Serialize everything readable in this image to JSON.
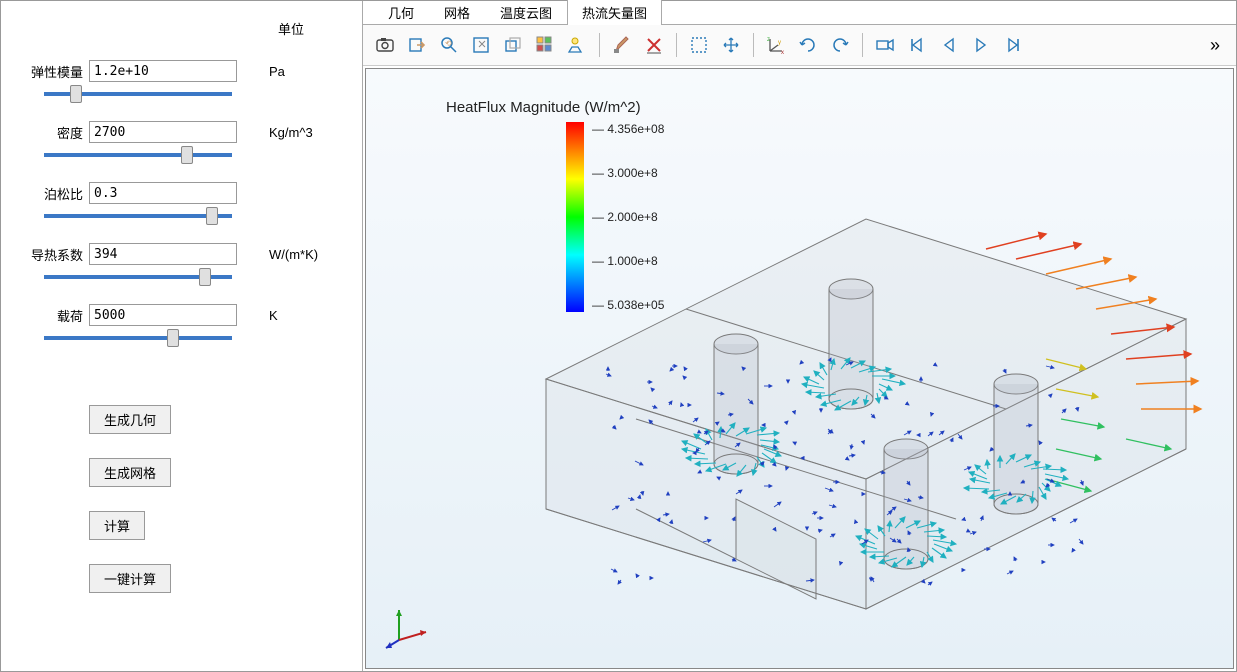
{
  "sidebar": {
    "unit_header": "单位",
    "params": [
      {
        "label": "弹性模量",
        "value": "1.2e+10",
        "unit": "Pa",
        "slider": 15
      },
      {
        "label": "密度",
        "value": "2700",
        "unit": "Kg/m^3",
        "slider": 78
      },
      {
        "label": "泊松比",
        "value": "0.3",
        "unit": "",
        "slider": 92
      },
      {
        "label": "导热系数",
        "value": "394",
        "unit": "W/(m*K)",
        "slider": 88
      },
      {
        "label": "载荷",
        "value": "5000",
        "unit": "K",
        "slider": 70
      }
    ],
    "buttons": {
      "gen_geom": "生成几何",
      "gen_mesh": "生成网格",
      "compute": "计算",
      "one_click": "一键计算"
    }
  },
  "tabs": {
    "items": [
      "几何",
      "网格",
      "温度云图",
      "热流矢量图"
    ],
    "active": 3
  },
  "legend": {
    "title": "HeatFlux Magnitude (W/m^2)",
    "max": "4.356e+08",
    "t3": "3.000e+8",
    "t2": "2.000e+8",
    "t1": "1.000e+8",
    "min": "5.038e+05"
  },
  "colors": {
    "model_stroke": "#7a7a7a",
    "model_fill": "rgba(190,195,200,0.18)",
    "cylinder_fill": "rgba(170,175,185,0.22)"
  }
}
